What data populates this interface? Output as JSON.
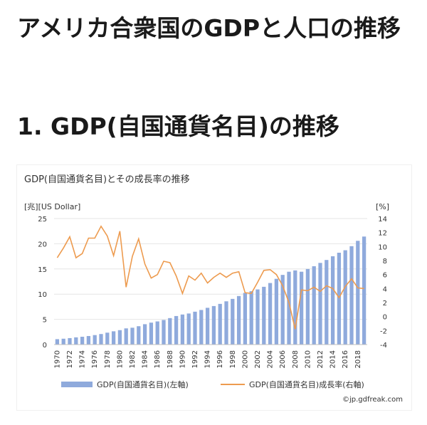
{
  "page": {
    "title": "アメリカ合衆国のGDPと人口の推移",
    "section_title": "1. GDP(自国通貨名目)の推移"
  },
  "chart_data": {
    "type": "bar+line",
    "title": "GDP(自国通貨名目)とその成長率の推移",
    "ylabel_left": "[兆][US Dollar]",
    "ylabel_right": "[%]",
    "ylim_left": [
      0,
      25
    ],
    "ylim_right": [
      -4,
      14
    ],
    "yticks_left": [
      0,
      5,
      10,
      15,
      20,
      25
    ],
    "yticks_right": [
      -4,
      -2,
      0,
      2,
      4,
      6,
      8,
      10,
      12,
      14
    ],
    "x": [
      1970,
      1971,
      1972,
      1973,
      1974,
      1975,
      1976,
      1977,
      1978,
      1979,
      1980,
      1981,
      1982,
      1983,
      1984,
      1985,
      1986,
      1987,
      1988,
      1989,
      1990,
      1991,
      1992,
      1993,
      1994,
      1995,
      1996,
      1997,
      1998,
      1999,
      2000,
      2001,
      2002,
      2003,
      2004,
      2005,
      2006,
      2007,
      2008,
      2009,
      2010,
      2011,
      2012,
      2013,
      2014,
      2015,
      2016,
      2017,
      2018,
      2019
    ],
    "xticks": [
      "1970",
      "1972",
      "1974",
      "1976",
      "1978",
      "1980",
      "1982",
      "1984",
      "1986",
      "1988",
      "1990",
      "1992",
      "1994",
      "1996",
      "1998",
      "2000",
      "2002",
      "2004",
      "2006",
      "2008",
      "2010",
      "2012",
      "2014",
      "2016",
      "2018"
    ],
    "series": [
      {
        "name": "GDP(自国通貨名目)(左軸)",
        "type": "bar",
        "axis": "left",
        "color": "#8faadc",
        "values": [
          1.07,
          1.16,
          1.28,
          1.43,
          1.55,
          1.69,
          1.88,
          2.09,
          2.36,
          2.63,
          2.86,
          3.21,
          3.34,
          3.64,
          4.04,
          4.35,
          4.59,
          4.87,
          5.25,
          5.66,
          5.96,
          6.16,
          6.52,
          6.86,
          7.29,
          7.64,
          8.07,
          8.58,
          9.06,
          9.63,
          10.25,
          10.58,
          10.94,
          11.46,
          12.21,
          13.04,
          13.82,
          14.45,
          14.71,
          14.45,
          14.99,
          15.54,
          16.2,
          16.78,
          17.52,
          18.22,
          18.71,
          19.52,
          20.58,
          21.43
        ]
      },
      {
        "name": "GDP(自国通貨名目)成長率(右軸)",
        "type": "line",
        "axis": "right",
        "color": "#ed9b4f",
        "values": [
          8.4,
          9.8,
          11.4,
          8.4,
          9.0,
          11.2,
          11.2,
          12.9,
          11.5,
          8.7,
          12.2,
          4.2,
          8.6,
          11.1,
          7.5,
          5.5,
          6.0,
          7.9,
          7.7,
          5.8,
          3.3,
          5.8,
          5.2,
          6.2,
          4.8,
          5.6,
          6.2,
          5.6,
          6.2,
          6.4,
          3.4,
          3.3,
          4.9,
          6.6,
          6.7,
          6.0,
          4.4,
          2.0,
          -1.8,
          3.8,
          3.7,
          4.2,
          3.6,
          4.4,
          4.0,
          2.7,
          4.3,
          5.4,
          4.1,
          4.0
        ]
      }
    ],
    "credit": "©jp.gdfreak.com"
  }
}
